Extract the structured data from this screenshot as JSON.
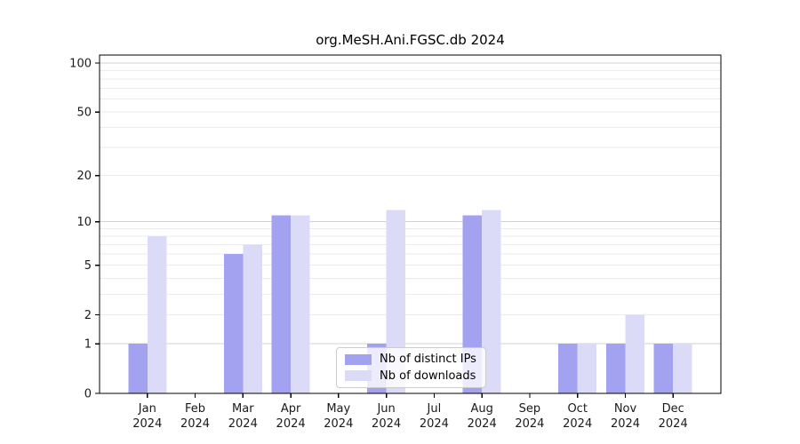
{
  "title": "org.MeSH.Ani.FGSC.db 2024",
  "colors": {
    "ips": "#a2a2f0",
    "downloads": "#dbdbf8",
    "grid_major": "#d2d2d2",
    "grid_minor": "#ebebeb",
    "axis": "#000000",
    "tick_text": "#1a1a1a",
    "legend_border": "#cccccc"
  },
  "legend": {
    "items": [
      {
        "label": "Nb of distinct IPs",
        "color_key": "ips"
      },
      {
        "label": "Nb of downloads",
        "color_key": "downloads"
      }
    ]
  },
  "y_axis": {
    "tick_values": [
      100,
      50,
      20,
      10,
      5,
      2,
      1,
      0
    ],
    "tick_labels": [
      "100",
      "50",
      "20",
      "10",
      "5",
      "2",
      "1",
      "0"
    ],
    "major_gridlines": [
      1,
      10,
      100
    ],
    "minor_gridlines": [
      2,
      3,
      4,
      5,
      6,
      7,
      8,
      9,
      20,
      30,
      40,
      50,
      60,
      70,
      80,
      90
    ]
  },
  "chart_data": {
    "type": "bar",
    "title": "org.MeSH.Ani.FGSC.db 2024",
    "categories": [
      "Jan 2024",
      "Feb 2024",
      "Mar 2024",
      "Apr 2024",
      "May 2024",
      "Jun 2024",
      "Jul 2024",
      "Aug 2024",
      "Sep 2024",
      "Oct 2024",
      "Nov 2024",
      "Dec 2024"
    ],
    "series": [
      {
        "name": "Nb of distinct IPs",
        "values": [
          1,
          0,
          6,
          11,
          0,
          1,
          0,
          11,
          0,
          1,
          1,
          1
        ]
      },
      {
        "name": "Nb of downloads",
        "values": [
          8,
          0,
          7,
          11,
          0,
          12,
          0,
          12,
          0,
          1,
          2,
          1
        ]
      }
    ],
    "xlabel": "",
    "ylabel": "",
    "yscale": "log1p",
    "ylim": [
      0,
      112
    ],
    "grid": true,
    "legend_position": "bottom-center"
  }
}
